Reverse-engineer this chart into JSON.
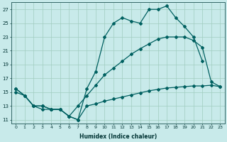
{
  "xlabel": "Humidex (Indice chaleur)",
  "xlim": [
    -0.5,
    23.5
  ],
  "ylim": [
    10.5,
    28
  ],
  "yticks": [
    11,
    13,
    15,
    17,
    19,
    21,
    23,
    25,
    27
  ],
  "xticks": [
    0,
    1,
    2,
    3,
    4,
    5,
    6,
    7,
    8,
    9,
    10,
    11,
    12,
    13,
    14,
    15,
    16,
    17,
    18,
    19,
    20,
    21,
    22,
    23
  ],
  "bg_color": "#c8eaea",
  "grid_color": "#a0ccc0",
  "line_color": "#006060",
  "line1_x": [
    0,
    1,
    2,
    3,
    4,
    5,
    6,
    7,
    8,
    9,
    10,
    11,
    12,
    13,
    14,
    15,
    16,
    17,
    18,
    19,
    20,
    21
  ],
  "line1_y": [
    15.5,
    14.5,
    13.0,
    12.5,
    12.5,
    12.5,
    11.5,
    11.0,
    15.5,
    18.0,
    23.0,
    25.0,
    25.8,
    25.3,
    25.0,
    27.0,
    27.0,
    27.5,
    25.8,
    24.5,
    23.0,
    19.5
  ],
  "line2_x": [
    0,
    1,
    2,
    3,
    4,
    5,
    6,
    7,
    8,
    9,
    10,
    11,
    12,
    13,
    14,
    15,
    16,
    17,
    18,
    19,
    20,
    21,
    22,
    23
  ],
  "line2_y": [
    15.0,
    14.5,
    13.0,
    13.0,
    12.5,
    12.5,
    11.5,
    13.0,
    14.5,
    16.0,
    17.5,
    18.5,
    19.5,
    20.5,
    21.3,
    22.0,
    22.7,
    23.0,
    23.0,
    23.0,
    22.5,
    21.5,
    16.5,
    15.8
  ],
  "line3_x": [
    0,
    1,
    2,
    3,
    4,
    5,
    6,
    7,
    8,
    9,
    10,
    11,
    12,
    13,
    14,
    15,
    16,
    17,
    18,
    19,
    20,
    21,
    22,
    23
  ],
  "line3_y": [
    15.5,
    14.5,
    13.0,
    13.0,
    12.5,
    12.5,
    11.5,
    11.0,
    13.0,
    13.3,
    13.7,
    14.0,
    14.3,
    14.6,
    14.9,
    15.2,
    15.4,
    15.6,
    15.7,
    15.8,
    15.9,
    15.9,
    16.0,
    15.8
  ],
  "figsize": [
    3.2,
    2.0
  ],
  "dpi": 100
}
